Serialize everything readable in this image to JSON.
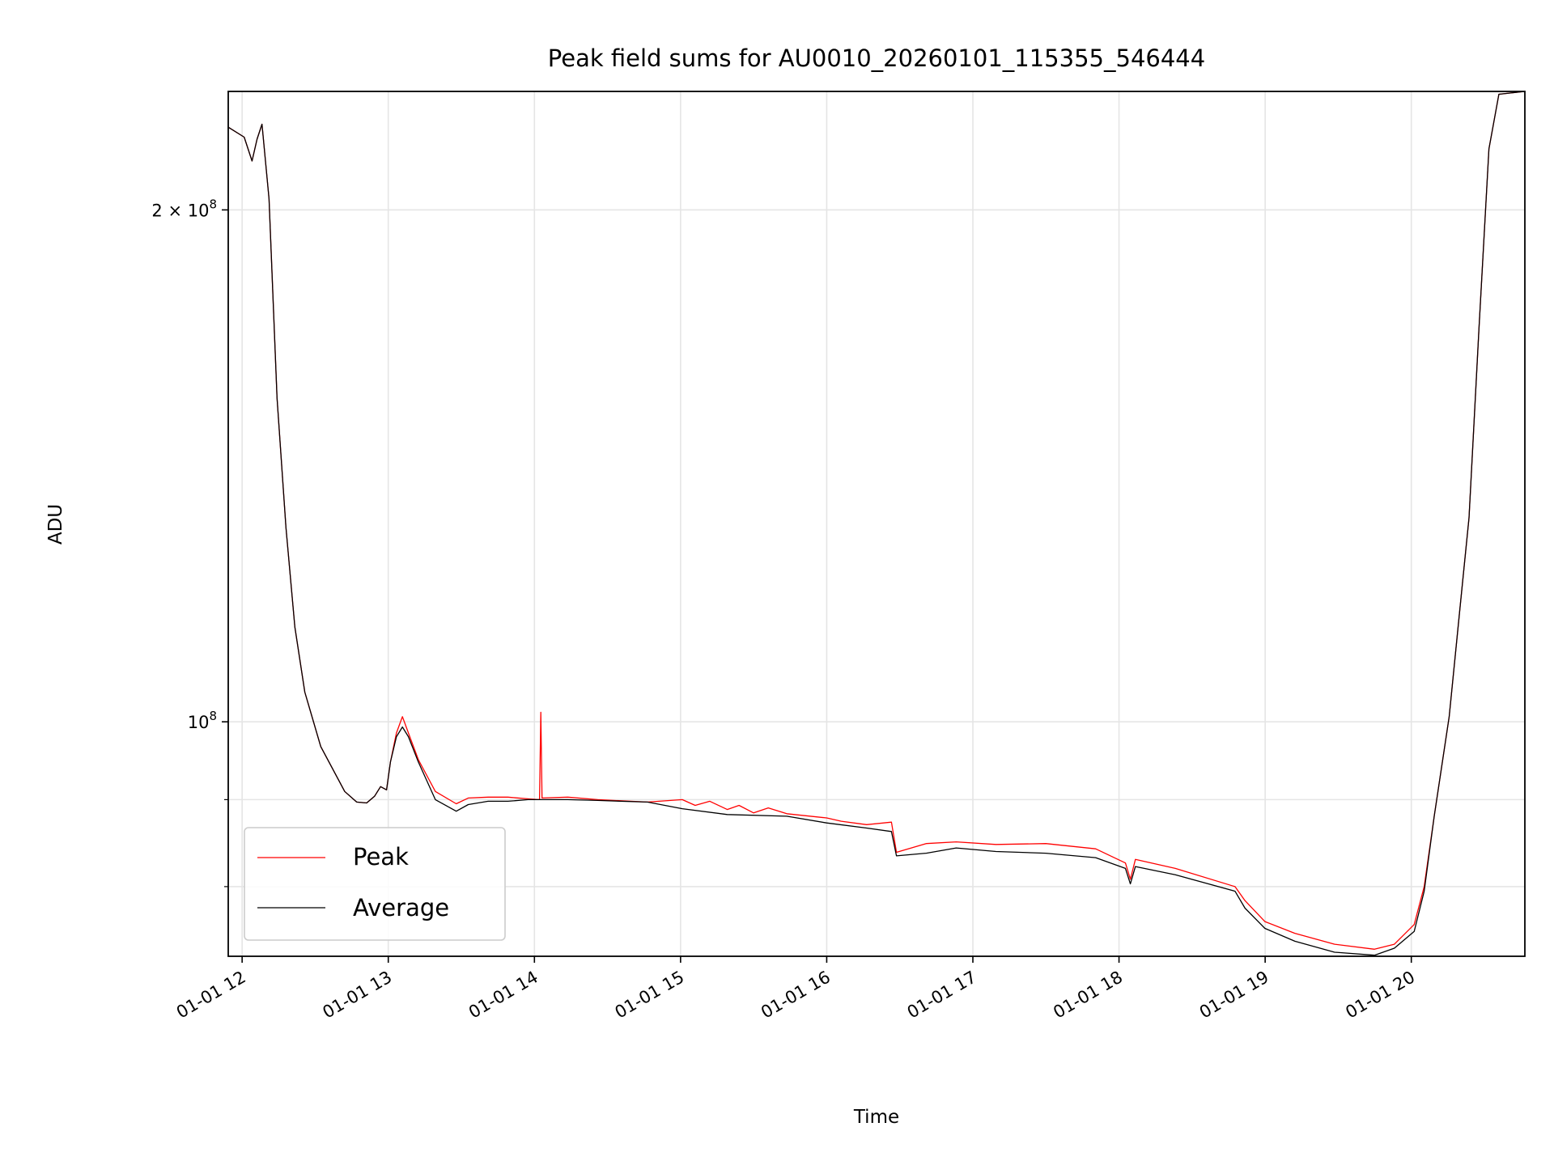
{
  "chart_data": {
    "type": "line",
    "title": "Peak field sums for AU0010_20260101_115355_546444",
    "xlabel": "Time",
    "ylabel": "ADU",
    "xscale": "time (hours)",
    "yscale": "log",
    "xlim": [
      11.905,
      20.777
    ],
    "ylim": [
      72800000,
      234800000
    ],
    "grid": true,
    "legend_position": "lower-left",
    "x_ticks": [
      {
        "value": 12,
        "label": "01-01 12"
      },
      {
        "value": 13,
        "label": "01-01 13"
      },
      {
        "value": 14,
        "label": "01-01 14"
      },
      {
        "value": 15,
        "label": "01-01 15"
      },
      {
        "value": 16,
        "label": "01-01 16"
      },
      {
        "value": 17,
        "label": "01-01 17"
      },
      {
        "value": 18,
        "label": "01-01 18"
      },
      {
        "value": 19,
        "label": "01-01 19"
      },
      {
        "value": 20,
        "label": "01-01 20"
      }
    ],
    "y_ticks": [
      {
        "value": 100000000,
        "base": "10",
        "exp": "8",
        "label": "10^8"
      },
      {
        "value": 200000000,
        "base": "2 × 10",
        "exp": "8",
        "label": "2×10^8"
      }
    ],
    "y_minor_ticks": [
      80000000,
      90000000
    ],
    "value_unit": 100000000,
    "series": [
      {
        "name": "Peak",
        "color": "#ff0000",
        "x": [
          11.905,
          12.014,
          12.068,
          12.102,
          12.136,
          12.184,
          12.239,
          12.3,
          12.361,
          12.429,
          12.538,
          12.702,
          12.784,
          12.852,
          12.906,
          12.947,
          12.988,
          13.015,
          13.056,
          13.097,
          13.138,
          13.206,
          13.322,
          13.465,
          13.547,
          13.683,
          13.819,
          13.956,
          14.035,
          14.044,
          14.052,
          14.228,
          14.433,
          14.773,
          15.012,
          15.1,
          15.2,
          15.319,
          15.4,
          15.5,
          15.6,
          15.727,
          16.0,
          16.1,
          16.273,
          16.443,
          16.477,
          16.681,
          16.886,
          17.158,
          17.499,
          17.84,
          18.044,
          18.078,
          18.112,
          18.385,
          18.794,
          18.862,
          18.998,
          19.203,
          19.475,
          19.748,
          19.884,
          20.02,
          20.088,
          20.157,
          20.259,
          20.327,
          20.395,
          20.463,
          20.531,
          20.599,
          20.777
        ],
        "y": [
          2.237,
          2.207,
          2.137,
          2.201,
          2.246,
          2.03,
          1.55,
          1.301,
          1.137,
          1.041,
          0.967,
          0.91,
          0.897,
          0.896,
          0.904,
          0.916,
          0.912,
          0.947,
          0.985,
          1.007,
          0.985,
          0.95,
          0.91,
          0.895,
          0.902,
          0.903,
          0.903,
          0.901,
          0.9,
          1.013,
          0.902,
          0.903,
          0.9,
          0.897,
          0.9,
          0.893,
          0.898,
          0.888,
          0.893,
          0.884,
          0.89,
          0.883,
          0.878,
          0.874,
          0.87,
          0.873,
          0.838,
          0.848,
          0.85,
          0.847,
          0.848,
          0.842,
          0.826,
          0.808,
          0.83,
          0.82,
          0.8,
          0.785,
          0.763,
          0.751,
          0.74,
          0.735,
          0.74,
          0.76,
          0.8,
          0.88,
          1.007,
          1.152,
          1.318,
          1.703,
          2.172,
          2.339,
          2.348
        ]
      },
      {
        "name": "Average",
        "color": "#000000",
        "x": [
          11.905,
          12.014,
          12.068,
          12.102,
          12.136,
          12.184,
          12.239,
          12.3,
          12.361,
          12.429,
          12.538,
          12.702,
          12.784,
          12.852,
          12.906,
          12.947,
          12.988,
          13.015,
          13.056,
          13.097,
          13.138,
          13.206,
          13.322,
          13.465,
          13.547,
          13.683,
          13.819,
          13.956,
          14.058,
          14.228,
          14.433,
          14.773,
          15.012,
          15.319,
          15.727,
          16.0,
          16.273,
          16.443,
          16.477,
          16.681,
          16.886,
          17.158,
          17.499,
          17.84,
          18.044,
          18.078,
          18.112,
          18.385,
          18.794,
          18.862,
          18.998,
          19.203,
          19.475,
          19.748,
          19.884,
          20.02,
          20.088,
          20.157,
          20.259,
          20.327,
          20.395,
          20.463,
          20.531,
          20.599,
          20.777
        ],
        "y": [
          2.237,
          2.207,
          2.137,
          2.201,
          2.246,
          2.03,
          1.55,
          1.301,
          1.137,
          1.041,
          0.967,
          0.91,
          0.897,
          0.896,
          0.904,
          0.916,
          0.912,
          0.947,
          0.98,
          0.993,
          0.98,
          0.947,
          0.9,
          0.886,
          0.894,
          0.898,
          0.898,
          0.9,
          0.9,
          0.9,
          0.899,
          0.897,
          0.889,
          0.882,
          0.88,
          0.872,
          0.866,
          0.862,
          0.834,
          0.837,
          0.843,
          0.839,
          0.837,
          0.832,
          0.82,
          0.803,
          0.822,
          0.813,
          0.795,
          0.777,
          0.756,
          0.743,
          0.732,
          0.729,
          0.736,
          0.753,
          0.795,
          0.88,
          1.007,
          1.152,
          1.318,
          1.703,
          2.172,
          2.339,
          2.348
        ]
      }
    ]
  }
}
